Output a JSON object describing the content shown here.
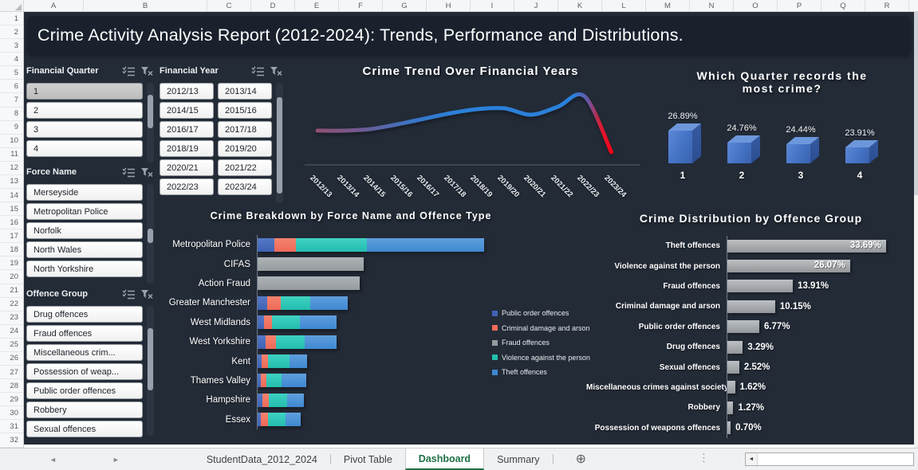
{
  "title": "Crime Activity Analysis Report (2012-2024): Trends, Performance and Distributions.",
  "spreadsheet": {
    "columns": [
      "A",
      "B",
      "C",
      "D",
      "E",
      "F",
      "G",
      "H",
      "I",
      "J",
      "K",
      "L",
      "M",
      "N",
      "O",
      "P",
      "Q",
      "R"
    ],
    "row_numbers": [
      "1",
      "2",
      "3",
      "4",
      "5",
      "6",
      "7",
      "8",
      "9",
      "10",
      "11",
      "12",
      "13",
      "14",
      "15",
      "16",
      "17",
      "18",
      "19",
      "20",
      "21",
      "22",
      "23",
      "24",
      "25",
      "26",
      "27",
      "28",
      "29",
      "30",
      "31",
      "32"
    ]
  },
  "slicers": [
    {
      "id": "financial_quarter",
      "label": "Financial Quarter",
      "items": [
        {
          "label": "1",
          "selected": true
        },
        {
          "label": "2"
        },
        {
          "label": "3"
        },
        {
          "label": "4"
        }
      ]
    },
    {
      "id": "financial_year",
      "label": "Financial Year",
      "items": [
        {
          "label": "2012/13"
        },
        {
          "label": "2013/14"
        },
        {
          "label": "2014/15"
        },
        {
          "label": "2015/16"
        },
        {
          "label": "2016/17"
        },
        {
          "label": "2017/18"
        },
        {
          "label": "2018/19"
        },
        {
          "label": "2019/20"
        },
        {
          "label": "2020/21"
        },
        {
          "label": "2021/22"
        },
        {
          "label": "2022/23"
        },
        {
          "label": "2023/24"
        }
      ]
    },
    {
      "id": "force_name",
      "label": "Force Name",
      "items": [
        {
          "label": "Merseyside"
        },
        {
          "label": "Metropolitan Police"
        },
        {
          "label": "Norfolk"
        },
        {
          "label": "North Wales"
        },
        {
          "label": "North Yorkshire"
        }
      ]
    },
    {
      "id": "offence_group",
      "label": "Offence Group",
      "items": [
        {
          "label": "Drug offences"
        },
        {
          "label": "Fraud offences"
        },
        {
          "label": "Miscellaneous crim..."
        },
        {
          "label": "Possession of weap..."
        },
        {
          "label": "Public order offences"
        },
        {
          "label": "Robbery"
        },
        {
          "label": "Sexual offences",
          "partial": true
        }
      ]
    }
  ],
  "chart_data": [
    {
      "id": "trend",
      "type": "line",
      "title": "Crime Trend Over Financial Years",
      "x": [
        "2012/13",
        "2013/14",
        "2014/15",
        "2015/16",
        "2016/17",
        "2017/18",
        "2018/19",
        "2019/20",
        "2020/21",
        "2021/22",
        "2022/23",
        "2023/24"
      ],
      "values": [
        43,
        43,
        45,
        51,
        58,
        65,
        70,
        71,
        63,
        73,
        86,
        16
      ],
      "unit": "relative crime level (no y-axis shown)",
      "grid": false,
      "line_gradient": [
        [
          "0%",
          "#8f5173"
        ],
        [
          "15%",
          "#6f5a92"
        ],
        [
          "32%",
          "#3a75c5"
        ],
        [
          "45%",
          "#2b80d9"
        ],
        [
          "87%",
          "#2b80d9"
        ],
        [
          "92%",
          "#6659a8"
        ],
        [
          "96%",
          "#cf2038"
        ],
        [
          "100%",
          "#ff0016"
        ]
      ]
    },
    {
      "id": "quarter",
      "type": "bar",
      "style": "3d",
      "title": "Which Quarter records the most crime?",
      "title_lines": [
        "Which Quarter records the",
        "most crime?"
      ],
      "categories": [
        "1",
        "2",
        "3",
        "4"
      ],
      "values": [
        26.89,
        24.76,
        24.44,
        23.91
      ],
      "labels": [
        "26.89%",
        "24.76%",
        "24.44%",
        "23.91%"
      ],
      "bar_color": "#4472c4"
    },
    {
      "id": "breakdown",
      "type": "bar",
      "orientation": "horizontal",
      "stacked": true,
      "title": "Crime Breakdown by Force Name and Offence Type",
      "categories": [
        "Metropolitan Police",
        "CIFAS",
        "Action Fraud",
        "Greater Manchester",
        "West Midlands",
        "West Yorkshire",
        "Kent",
        "Thames Valley",
        "Hampshire",
        "Essex"
      ],
      "series": [
        {
          "name": "Public order offences",
          "color": "#3f63b5",
          "color_top": "#5578c6",
          "values": [
            21,
            0,
            0,
            12,
            8,
            10,
            5,
            4,
            6,
            4
          ]
        },
        {
          "name": "Criminal damage and arson",
          "color": "#ef6a57",
          "color_top": "#f4836f",
          "values": [
            27,
            0,
            0,
            17,
            10,
            13,
            8,
            7,
            8,
            9
          ]
        },
        {
          "name": "Fraud offences",
          "color": "#969b9f",
          "color_top": "#aeb3b6",
          "values": [
            0,
            133,
            128,
            0,
            0,
            0,
            0,
            0,
            0,
            0
          ]
        },
        {
          "name": "Violence against the person",
          "color": "#23bdae",
          "color_top": "#3fd2c2",
          "values": [
            89,
            0,
            0,
            37,
            35,
            36,
            27,
            19,
            23,
            22
          ]
        },
        {
          "name": "Theft offences",
          "color": "#3f88d1",
          "color_top": "#5f9fdd",
          "values": [
            147,
            0,
            0,
            47,
            46,
            40,
            22,
            31,
            21,
            19
          ]
        }
      ],
      "unit": "relative count (no x-axis shown)",
      "legend_position": "right"
    },
    {
      "id": "distribution",
      "type": "bar",
      "orientation": "horizontal",
      "title": "Crime Distribution by Offence Group",
      "categories": [
        "Theft offences",
        "Violence against the person",
        "Fraud offences",
        "Criminal damage and arson",
        "Public order offences",
        "Drug offences",
        "Sexual offences",
        "Miscellaneous crimes against society",
        "Robbery",
        "Possession of weapons offences"
      ],
      "values": [
        33.69,
        26.07,
        13.91,
        10.15,
        6.77,
        3.29,
        2.52,
        1.62,
        1.27,
        0.7
      ],
      "labels": [
        "33.69%",
        "26.07%",
        "13.91%",
        "10.15%",
        "6.77%",
        "3.29%",
        "2.52%",
        "1.62%",
        "1.27%",
        "0.70%"
      ],
      "bar_color": "#a9adb0",
      "unit": "percent"
    }
  ],
  "sheet_tabs": {
    "tabs": [
      {
        "label": "StudentData_2012_2024"
      },
      {
        "label": "Pivot Table"
      },
      {
        "label": "Dashboard",
        "active": true
      },
      {
        "label": "Summary"
      }
    ]
  },
  "colors": {
    "dashboard_bg": "#232b37",
    "banner_bg": "#1a212d",
    "accent_green": "#1e7145"
  }
}
